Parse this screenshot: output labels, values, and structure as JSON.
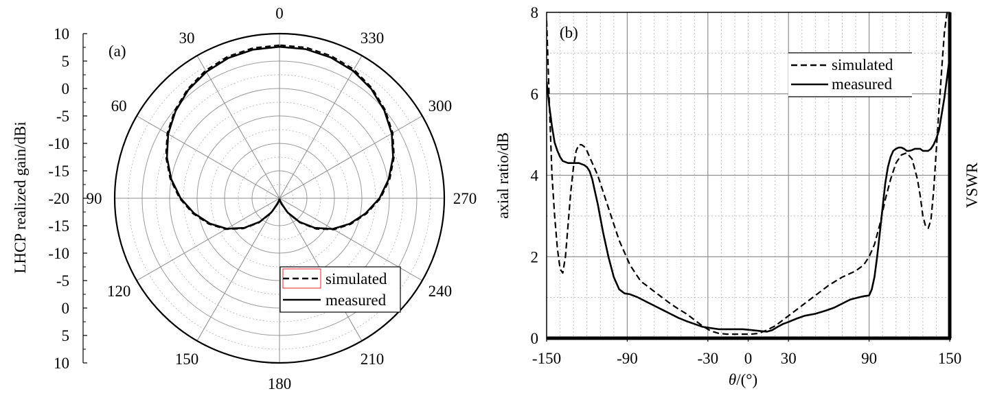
{
  "chart_data": [
    {
      "type": "polar",
      "panel_label": "(a)",
      "ylabel": "LHCP realized gain/dBi",
      "radial_range": [
        -20,
        10
      ],
      "radial_ticks": [
        10,
        5,
        0,
        -5,
        -10,
        -15,
        -20,
        -15,
        -10,
        -5,
        0,
        5,
        10
      ],
      "angle_ticks": [
        0,
        30,
        60,
        90,
        120,
        150,
        180,
        210,
        240,
        270,
        300,
        330
      ],
      "angle_direction": "counterclockwise",
      "grid": true,
      "legend": [
        "simulated",
        "measured"
      ],
      "legend_position": "bottom-right",
      "series": [
        {
          "name": "simulated",
          "style": "dashed",
          "theta": [
            0,
            10,
            20,
            30,
            40,
            50,
            60,
            70,
            80,
            90,
            100,
            110,
            120,
            130,
            140,
            150,
            160,
            170,
            180,
            190,
            200,
            210,
            220,
            230,
            240,
            250,
            260,
            270,
            280,
            290,
            300,
            310,
            320,
            330,
            340,
            350,
            360
          ],
          "gain": [
            7.9,
            7.8,
            7.5,
            6.9,
            6.0,
            4.9,
            3.6,
            2.0,
            0.2,
            -1.8,
            -4.0,
            -6.3,
            -8.7,
            -11.4,
            -14.2,
            -16.8,
            -18.8,
            -19.6,
            -19.9,
            -19.6,
            -18.8,
            -16.8,
            -14.2,
            -11.3,
            -8.6,
            -6.2,
            -3.9,
            -1.6,
            0.4,
            2.2,
            3.8,
            5.1,
            6.2,
            7.1,
            7.6,
            7.9,
            7.9
          ]
        },
        {
          "name": "measured",
          "style": "solid",
          "theta": [
            0,
            10,
            20,
            30,
            40,
            50,
            60,
            70,
            80,
            90,
            100,
            110,
            120,
            130,
            140,
            150,
            160,
            170,
            180,
            190,
            200,
            210,
            220,
            230,
            240,
            250,
            260,
            270,
            280,
            290,
            300,
            310,
            320,
            330,
            340,
            350,
            360
          ],
          "gain": [
            7.6,
            7.5,
            7.2,
            6.6,
            5.8,
            4.7,
            3.4,
            1.8,
            0.0,
            -2.0,
            -4.2,
            -6.5,
            -8.9,
            -11.6,
            -14.4,
            -17.0,
            -18.9,
            -19.6,
            -19.9,
            -19.6,
            -18.9,
            -17.0,
            -14.4,
            -11.6,
            -8.8,
            -6.4,
            -4.1,
            -1.8,
            0.2,
            2.0,
            3.6,
            4.9,
            6.0,
            6.8,
            7.3,
            7.6,
            7.6
          ]
        }
      ]
    },
    {
      "type": "line",
      "panel_label": "(b)",
      "xlabel_symbol": "θ",
      "xlabel_rest": "/(°)",
      "ylabel": "axial ratio/dB",
      "ylabel_right": "VSWR",
      "xlim": [
        -150,
        150
      ],
      "ylim": [
        0,
        8
      ],
      "x_ticks": [
        -150,
        -90,
        -30,
        0,
        30,
        90,
        150
      ],
      "y_ticks": [
        0,
        2,
        4,
        6,
        8
      ],
      "grid": true,
      "legend": [
        "simulated",
        "measured"
      ],
      "legend_position": "top-right",
      "series": [
        {
          "name": "simulated",
          "style": "dashed",
          "x": [
            -150,
            -148,
            -146,
            -144,
            -142,
            -140,
            -138,
            -136,
            -134,
            -132,
            -130,
            -128,
            -126,
            -124,
            -122,
            -120,
            -116,
            -112,
            -108,
            -104,
            -100,
            -96,
            -92,
            -88,
            -84,
            -80,
            -76,
            -70,
            -64,
            -58,
            -52,
            -46,
            -40,
            -34,
            -28,
            -22,
            -16,
            -10,
            -4,
            2,
            8,
            14,
            20,
            26,
            32,
            40,
            50,
            60,
            70,
            80,
            86,
            90,
            94,
            98,
            102,
            106,
            110,
            114,
            118,
            122,
            126,
            128,
            130,
            132,
            134,
            136,
            138,
            140,
            142,
            144,
            146,
            148,
            150
          ],
          "y": [
            7.8,
            5.8,
            4.0,
            3.0,
            2.2,
            1.7,
            1.6,
            2.0,
            2.8,
            3.6,
            4.2,
            4.6,
            4.75,
            4.75,
            4.7,
            4.6,
            4.3,
            4.0,
            3.6,
            3.2,
            2.8,
            2.4,
            2.1,
            1.8,
            1.6,
            1.4,
            1.3,
            1.15,
            1.0,
            0.85,
            0.72,
            0.6,
            0.45,
            0.3,
            0.18,
            0.12,
            0.1,
            0.1,
            0.1,
            0.1,
            0.12,
            0.2,
            0.3,
            0.45,
            0.6,
            0.8,
            1.05,
            1.3,
            1.5,
            1.65,
            1.8,
            2.0,
            2.3,
            2.8,
            3.4,
            3.9,
            4.3,
            4.5,
            4.55,
            4.4,
            3.9,
            3.5,
            3.0,
            2.75,
            2.7,
            2.9,
            3.6,
            4.6,
            5.6,
            6.6,
            7.5,
            8.0,
            8.0
          ]
        },
        {
          "name": "measured",
          "style": "solid",
          "x": [
            -150,
            -149,
            -148,
            -146,
            -144,
            -142,
            -140,
            -138,
            -134,
            -130,
            -126,
            -122,
            -120,
            -118,
            -116,
            -114,
            -112,
            -108,
            -104,
            -100,
            -96,
            -92,
            -88,
            -82,
            -76,
            -70,
            -64,
            -58,
            -52,
            -46,
            -40,
            -34,
            -28,
            -22,
            -16,
            -10,
            -4,
            2,
            8,
            14,
            18,
            22,
            26,
            30,
            36,
            42,
            50,
            58,
            64,
            70,
            76,
            82,
            86,
            90,
            92,
            94,
            96,
            98,
            100,
            102,
            104,
            106,
            108,
            110,
            112,
            114,
            116,
            118,
            120,
            122,
            124,
            126,
            128,
            130,
            132,
            134,
            136,
            138,
            140,
            142,
            144,
            146,
            148,
            150
          ],
          "y": [
            6.3,
            6.0,
            5.7,
            5.2,
            4.8,
            4.6,
            4.45,
            4.35,
            4.3,
            4.3,
            4.3,
            4.25,
            4.2,
            4.1,
            3.9,
            3.6,
            3.3,
            2.6,
            2.0,
            1.5,
            1.2,
            1.1,
            1.08,
            1.0,
            0.9,
            0.8,
            0.7,
            0.6,
            0.5,
            0.42,
            0.35,
            0.28,
            0.25,
            0.22,
            0.22,
            0.22,
            0.22,
            0.2,
            0.18,
            0.16,
            0.2,
            0.28,
            0.35,
            0.4,
            0.48,
            0.55,
            0.6,
            0.68,
            0.75,
            0.85,
            0.95,
            1.0,
            1.03,
            1.05,
            1.2,
            1.5,
            2.0,
            2.6,
            3.2,
            3.8,
            4.2,
            4.45,
            4.6,
            4.65,
            4.68,
            4.68,
            4.65,
            4.6,
            4.6,
            4.62,
            4.65,
            4.65,
            4.65,
            4.6,
            4.6,
            4.6,
            4.65,
            4.75,
            4.9,
            5.1,
            5.5,
            5.9,
            6.4,
            6.9
          ]
        }
      ]
    }
  ]
}
